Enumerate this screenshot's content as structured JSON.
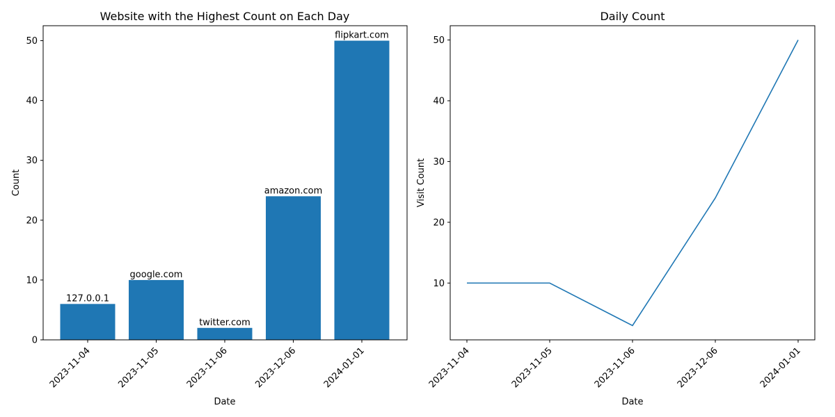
{
  "chart_data": [
    {
      "type": "bar",
      "title": "Website with the Highest Count on Each Day",
      "xlabel": "Date",
      "ylabel": "Count",
      "categories": [
        "2023-11-04",
        "2023-11-05",
        "2023-11-06",
        "2023-12-06",
        "2024-01-01"
      ],
      "values": [
        6,
        10,
        2,
        24,
        50
      ],
      "bar_labels": [
        "127.0.0.1",
        "google.com",
        "twitter.com",
        "amazon.com",
        "flipkart.com"
      ],
      "ylim": [
        0,
        52.5
      ],
      "yticks": [
        0,
        10,
        20,
        30,
        40,
        50
      ],
      "color": "#1f77b4",
      "grid": false
    },
    {
      "type": "line",
      "title": "Daily Count",
      "xlabel": "Date",
      "ylabel": "Visit Count",
      "categories": [
        "2023-11-04",
        "2023-11-05",
        "2023-11-06",
        "2023-12-06",
        "2024-01-01"
      ],
      "values": [
        10,
        10,
        3,
        24,
        50
      ],
      "ylim": [
        0.65,
        52.35
      ],
      "yticks": [
        10,
        20,
        30,
        40,
        50
      ],
      "color": "#1f77b4",
      "grid": false
    }
  ]
}
